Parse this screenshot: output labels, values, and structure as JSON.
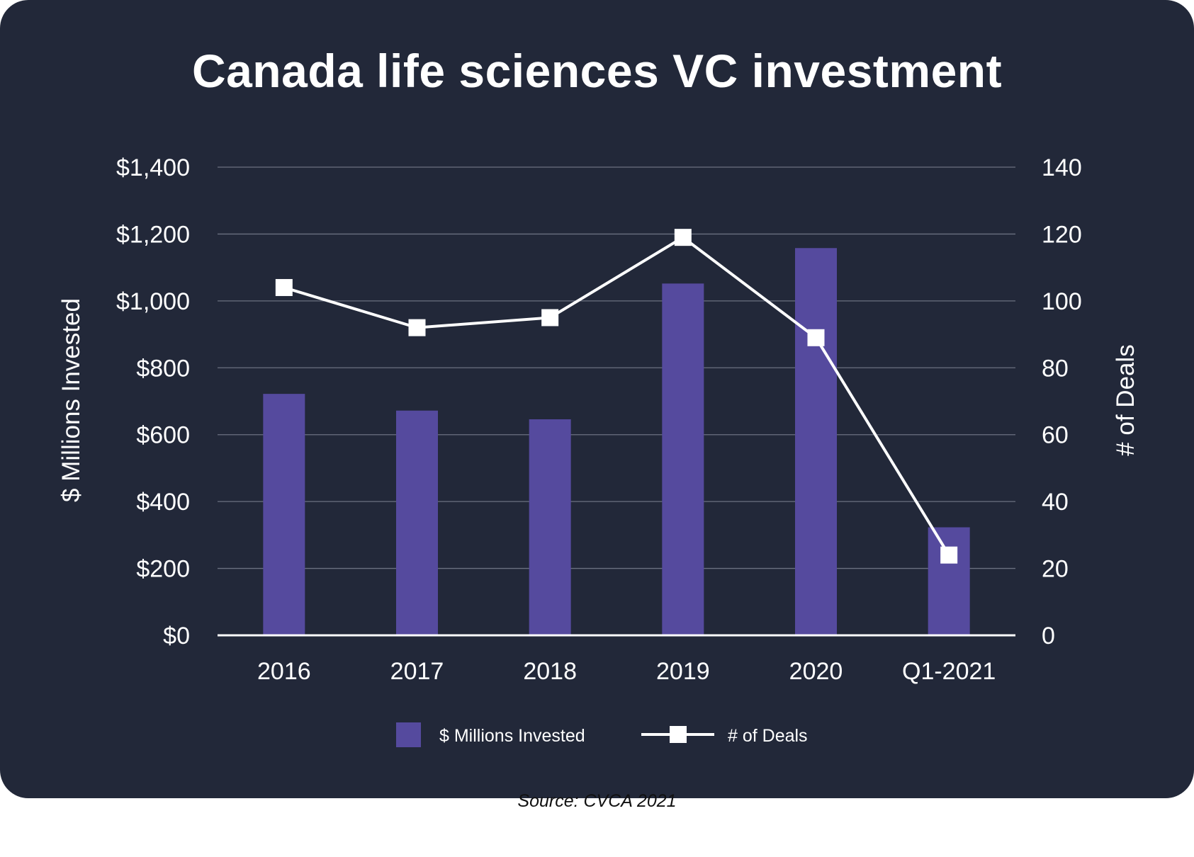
{
  "chart_data": {
    "type": "bar",
    "title": "Canada life sciences VC investment",
    "categories": [
      "2016",
      "2017",
      "2018",
      "2019",
      "2020",
      "Q1-2021"
    ],
    "series": [
      {
        "name": "$ Millions Invested",
        "type": "bar",
        "axis": "left",
        "values": [
          722,
          672,
          646,
          1052,
          1158,
          323
        ]
      },
      {
        "name": "# of Deals",
        "type": "line",
        "axis": "right",
        "values": [
          104,
          92,
          95,
          119,
          89,
          24
        ]
      }
    ],
    "y_left": {
      "label": "$ Millions Invested",
      "range": [
        0,
        1400
      ],
      "ticks": [
        "$0",
        "$200",
        "$400",
        "$600",
        "$800",
        "$1,000",
        "$1,200",
        "$1,400"
      ]
    },
    "y_right": {
      "label": "# of Deals",
      "range": [
        0,
        140
      ],
      "ticks": [
        "0",
        "20",
        "40",
        "60",
        "80",
        "100",
        "120",
        "140"
      ]
    },
    "grid": true,
    "legend_position": "bottom-center",
    "colors": {
      "background": "#222839",
      "bar": "#554a9e",
      "line": "#ffffff",
      "grid": "#6b7080",
      "text": "#ffffff"
    },
    "source": "Source: CVCA 2021"
  }
}
